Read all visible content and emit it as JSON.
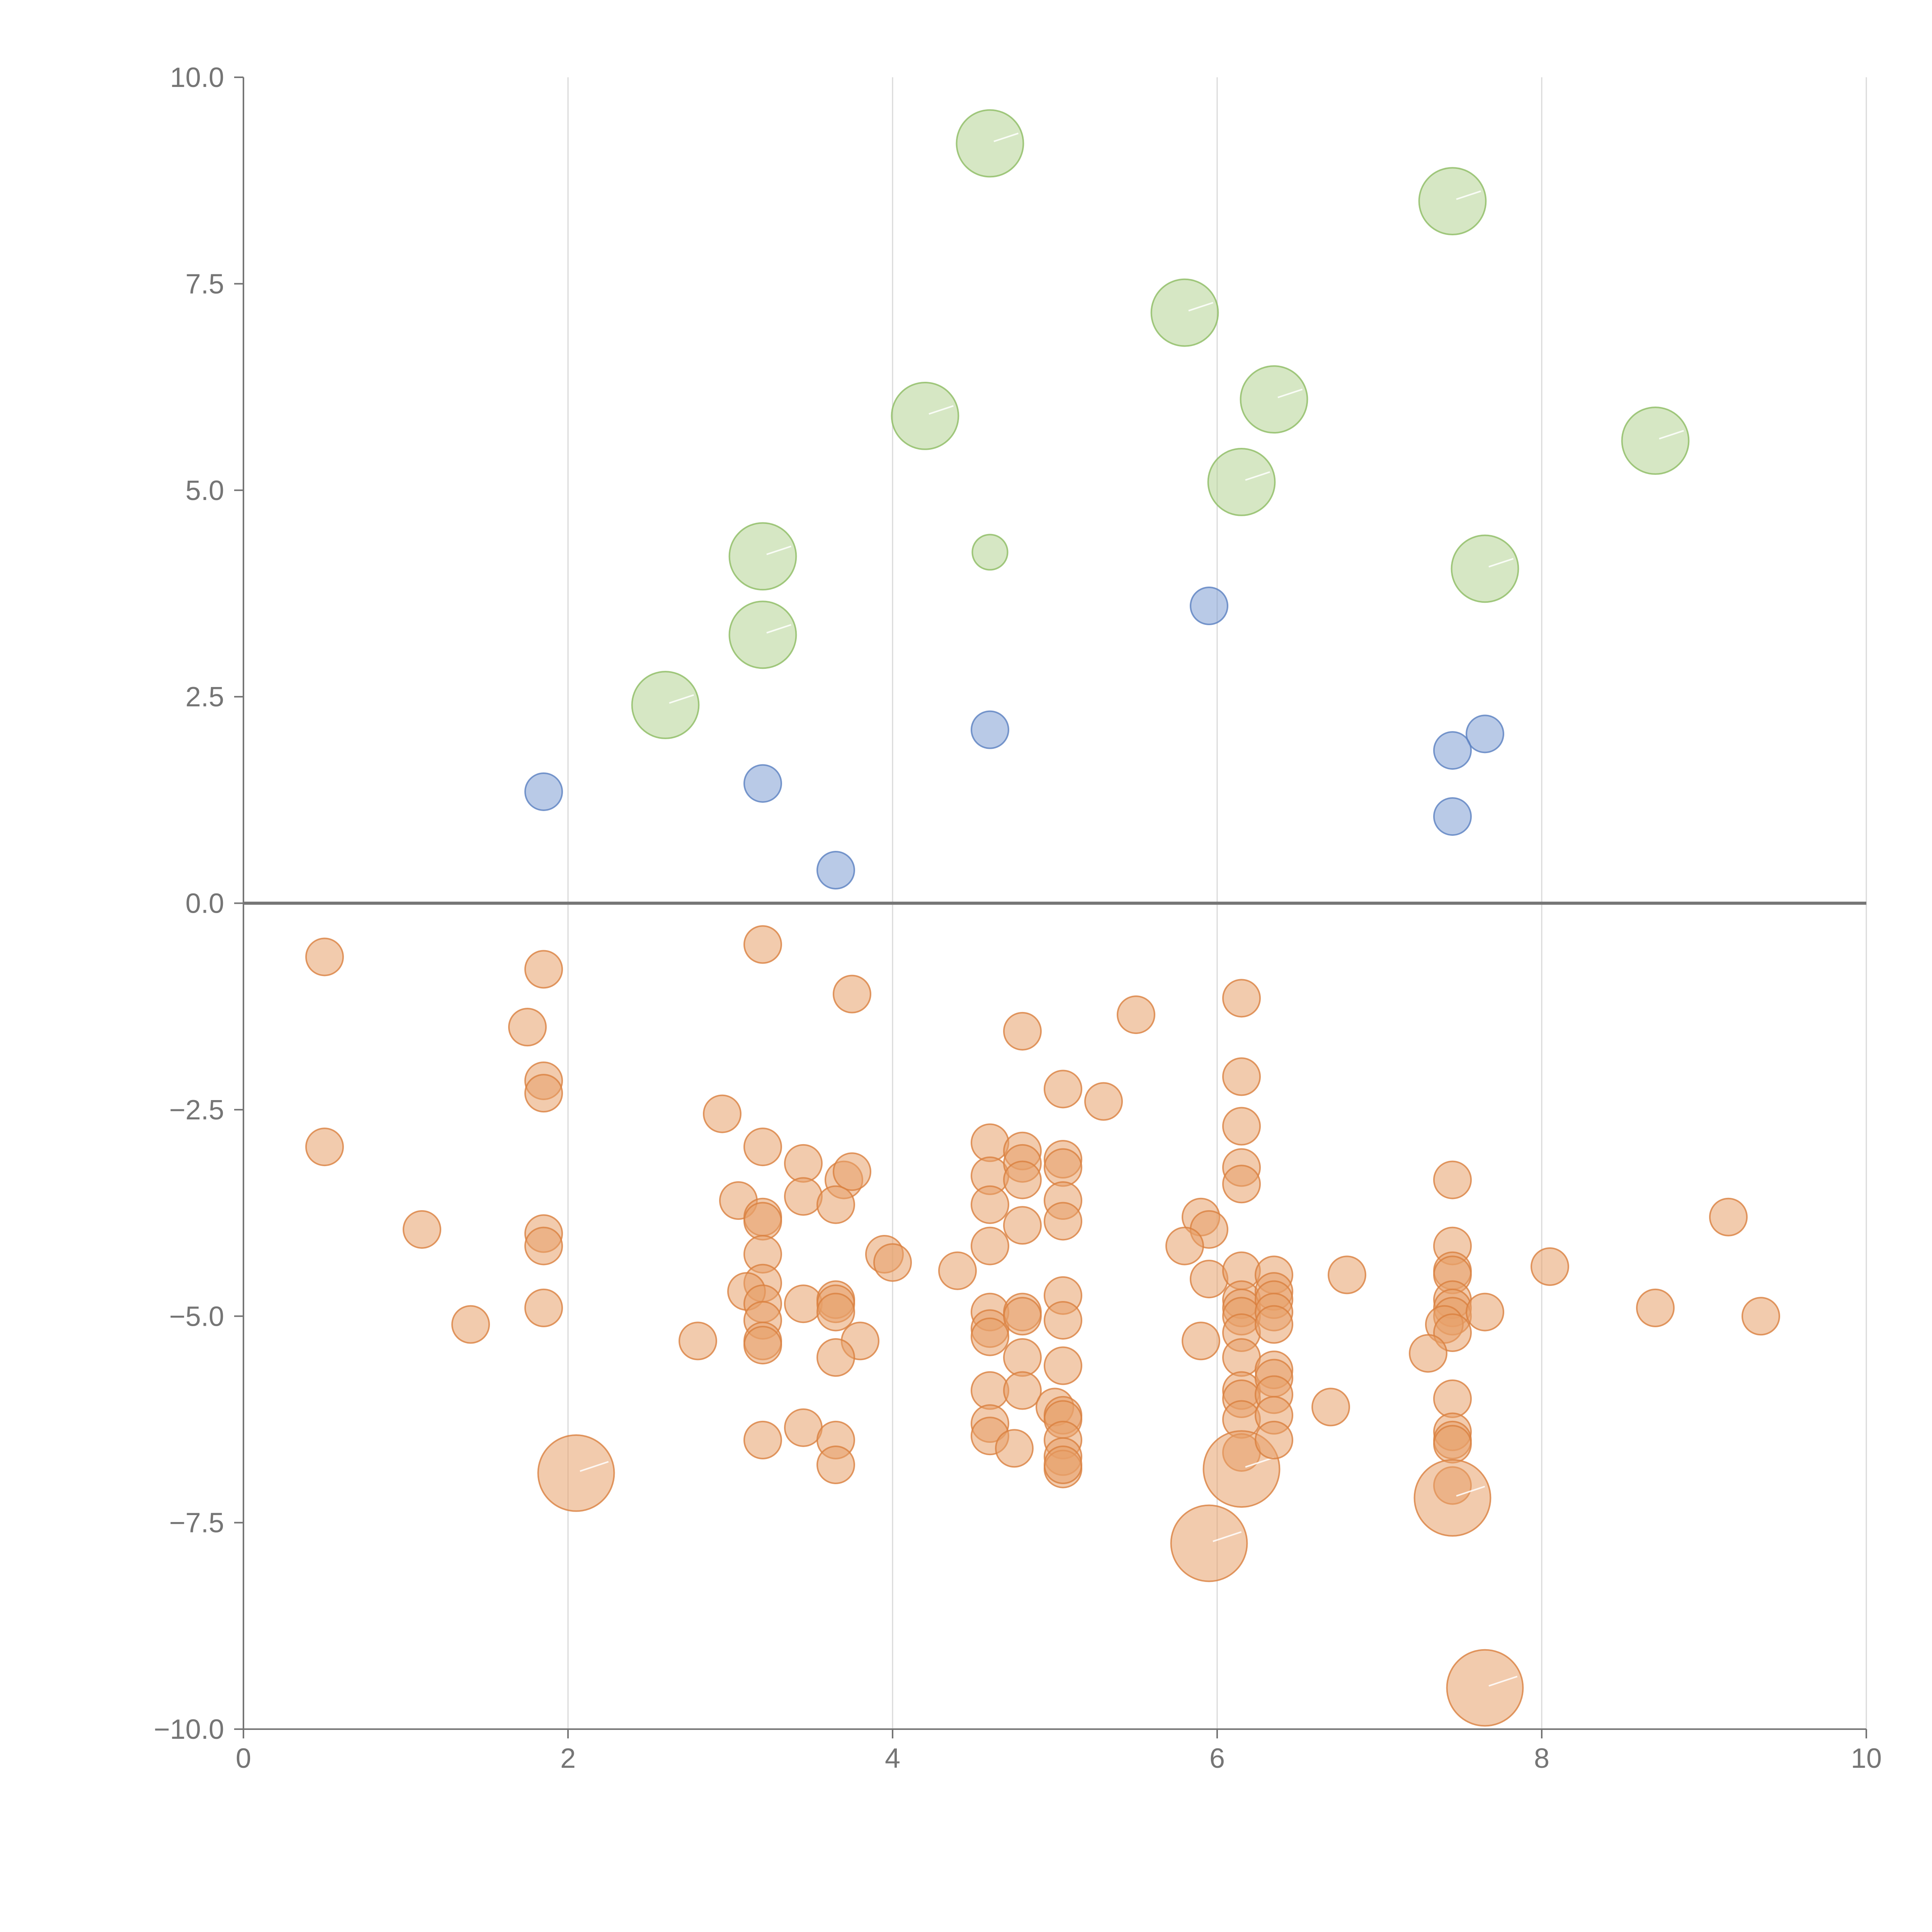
{
  "chart_data": {
    "type": "scatter",
    "title": "",
    "xlabel": "",
    "ylabel": "",
    "xlim": [
      0,
      10
    ],
    "ylim": [
      -10,
      10
    ],
    "grid": "vertical",
    "x_ticks": [
      0,
      2,
      4,
      6,
      8,
      10
    ],
    "x_tick_labels": [
      "0",
      "2",
      "4",
      "6",
      "8",
      "10"
    ],
    "y_ticks": [
      10,
      7.5,
      5,
      2.5,
      0,
      -2.5,
      -5,
      -7.5,
      -10
    ],
    "y_tick_labels": [
      "10.0",
      "7.5",
      "5.0",
      "2.5",
      "0.0",
      "−2.5",
      "−5.0",
      "−7.5",
      "−10.0"
    ],
    "colors": {
      "green_fill": "#b5d394",
      "green_stroke": "#8cbc62",
      "blue_fill": "#7f9fd3",
      "blue_stroke": "#5a7fc0",
      "orange_fill": "#e8a06a",
      "orange_stroke": "#d9803f"
    },
    "series": [
      {
        "name": "green",
        "color_key": "green",
        "points": [
          [
            4.6,
            9.2,
            1.8
          ],
          [
            7.45,
            8.5,
            1.8
          ],
          [
            5.8,
            7.15,
            1.8
          ],
          [
            6.35,
            6.1,
            1.8
          ],
          [
            4.2,
            5.9,
            1.8
          ],
          [
            8.7,
            5.6,
            1.8
          ],
          [
            6.15,
            5.1,
            1.8
          ],
          [
            3.2,
            4.2,
            1.8
          ],
          [
            7.65,
            4.05,
            1.8
          ],
          [
            4.6,
            4.25,
            0.95
          ],
          [
            3.2,
            3.25,
            1.8
          ],
          [
            2.6,
            2.4,
            1.8
          ]
        ]
      },
      {
        "name": "blue",
        "color_key": "blue",
        "points": [
          [
            5.95,
            3.6,
            1
          ],
          [
            4.6,
            2.1,
            1
          ],
          [
            7.65,
            2.05,
            1
          ],
          [
            7.45,
            1.85,
            1
          ],
          [
            1.85,
            1.35,
            1
          ],
          [
            3.2,
            1.45,
            1
          ],
          [
            7.45,
            1.05,
            1
          ],
          [
            3.65,
            0.4,
            1
          ]
        ]
      },
      {
        "name": "orange",
        "color_key": "orange",
        "points": [
          [
            0.5,
            -0.65,
            1
          ],
          [
            0.5,
            -2.95,
            1
          ],
          [
            1.85,
            -0.8,
            1
          ],
          [
            1.75,
            -1.5,
            1
          ],
          [
            1.85,
            -2.15,
            1
          ],
          [
            1.85,
            -2.3,
            1
          ],
          [
            1.85,
            -4.0,
            1
          ],
          [
            1.85,
            -4.15,
            1
          ],
          [
            1.85,
            -4.9,
            1
          ],
          [
            1.1,
            -3.95,
            1
          ],
          [
            1.4,
            -5.1,
            1
          ],
          [
            2.05,
            -6.9,
            2.05
          ],
          [
            2.8,
            -5.3,
            1
          ],
          [
            2.95,
            -2.55,
            1
          ],
          [
            3.2,
            -0.5,
            1
          ],
          [
            3.2,
            -2.95,
            1
          ],
          [
            3.05,
            -3.6,
            1
          ],
          [
            3.2,
            -3.8,
            1
          ],
          [
            3.2,
            -3.85,
            1
          ],
          [
            3.2,
            -4.25,
            1
          ],
          [
            3.2,
            -4.6,
            1
          ],
          [
            3.1,
            -4.7,
            1
          ],
          [
            3.2,
            -4.85,
            1
          ],
          [
            3.2,
            -5.05,
            1
          ],
          [
            3.2,
            -5.3,
            1
          ],
          [
            3.2,
            -5.35,
            1
          ],
          [
            3.2,
            -6.5,
            1
          ],
          [
            3.45,
            -3.15,
            1
          ],
          [
            3.45,
            -3.55,
            1
          ],
          [
            3.45,
            -4.85,
            1
          ],
          [
            3.45,
            -6.35,
            1
          ],
          [
            3.75,
            -1.1,
            1
          ],
          [
            3.7,
            -3.35,
            1
          ],
          [
            3.75,
            -3.25,
            1
          ],
          [
            3.65,
            -3.65,
            1
          ],
          [
            3.65,
            -4.8,
            1
          ],
          [
            3.65,
            -4.85,
            1
          ],
          [
            3.65,
            -4.95,
            1
          ],
          [
            3.8,
            -5.3,
            1
          ],
          [
            3.65,
            -5.5,
            1
          ],
          [
            3.65,
            -6.5,
            1
          ],
          [
            3.65,
            -6.8,
            1
          ],
          [
            3.95,
            -4.25,
            1
          ],
          [
            4.0,
            -4.35,
            1
          ],
          [
            4.4,
            -4.45,
            1
          ],
          [
            4.6,
            -2.9,
            1
          ],
          [
            4.6,
            -3.3,
            1
          ],
          [
            4.6,
            -3.65,
            1
          ],
          [
            4.6,
            -4.15,
            1
          ],
          [
            4.6,
            -4.95,
            1
          ],
          [
            4.6,
            -5.15,
            1
          ],
          [
            4.6,
            -5.25,
            1
          ],
          [
            4.6,
            -5.9,
            1
          ],
          [
            4.6,
            -6.3,
            1
          ],
          [
            4.6,
            -6.45,
            1
          ],
          [
            4.75,
            -6.6,
            1
          ],
          [
            4.8,
            -1.55,
            1
          ],
          [
            4.8,
            -3.0,
            1
          ],
          [
            4.8,
            -3.15,
            1
          ],
          [
            4.8,
            -3.35,
            1
          ],
          [
            4.8,
            -3.9,
            1
          ],
          [
            4.8,
            -4.95,
            1
          ],
          [
            4.8,
            -5.0,
            1
          ],
          [
            4.8,
            -5.5,
            1
          ],
          [
            4.8,
            -5.9,
            1
          ],
          [
            5.05,
            -2.25,
            1
          ],
          [
            5.05,
            -3.1,
            1
          ],
          [
            5.05,
            -3.2,
            1
          ],
          [
            5.05,
            -3.6,
            1
          ],
          [
            5.05,
            -3.85,
            1
          ],
          [
            5.05,
            -4.75,
            1
          ],
          [
            5.05,
            -5.05,
            1
          ],
          [
            5.05,
            -5.6,
            1
          ],
          [
            5.0,
            -6.1,
            1
          ],
          [
            5.05,
            -6.2,
            1
          ],
          [
            5.05,
            -6.25,
            1
          ],
          [
            5.05,
            -6.5,
            1
          ],
          [
            5.05,
            -6.7,
            1
          ],
          [
            5.05,
            -6.85,
            1
          ],
          [
            5.05,
            -6.8,
            1
          ],
          [
            5.3,
            -2.4,
            1
          ],
          [
            5.5,
            -1.35,
            1
          ],
          [
            5.9,
            -3.8,
            1
          ],
          [
            5.95,
            -3.95,
            1
          ],
          [
            5.8,
            -4.15,
            1
          ],
          [
            5.95,
            -4.55,
            1
          ],
          [
            5.9,
            -5.3,
            1
          ],
          [
            5.95,
            -7.75,
            2.05
          ],
          [
            6.15,
            -1.15,
            1
          ],
          [
            6.15,
            -2.1,
            1
          ],
          [
            6.15,
            -2.7,
            1
          ],
          [
            6.15,
            -3.2,
            1
          ],
          [
            6.15,
            -3.4,
            1
          ],
          [
            6.15,
            -4.45,
            1
          ],
          [
            6.15,
            -4.8,
            1
          ],
          [
            6.15,
            -4.9,
            1
          ],
          [
            6.15,
            -5.0,
            1
          ],
          [
            6.15,
            -5.2,
            1
          ],
          [
            6.15,
            -5.5,
            1
          ],
          [
            6.15,
            -5.9,
            1
          ],
          [
            6.15,
            -6.0,
            1
          ],
          [
            6.15,
            -6.25,
            1
          ],
          [
            6.15,
            -6.65,
            1
          ],
          [
            6.15,
            -6.85,
            2.05
          ],
          [
            6.35,
            -4.5,
            1
          ],
          [
            6.35,
            -4.7,
            1
          ],
          [
            6.35,
            -4.8,
            1
          ],
          [
            6.35,
            -4.95,
            1
          ],
          [
            6.35,
            -5.1,
            1
          ],
          [
            6.35,
            -5.65,
            1
          ],
          [
            6.35,
            -5.75,
            1
          ],
          [
            6.35,
            -5.95,
            1
          ],
          [
            6.35,
            -6.2,
            1
          ],
          [
            6.35,
            -6.5,
            1
          ],
          [
            6.7,
            -6.1,
            1
          ],
          [
            6.8,
            -4.5,
            1
          ],
          [
            7.45,
            -3.35,
            1
          ],
          [
            7.45,
            -4.15,
            1
          ],
          [
            7.45,
            -4.45,
            1
          ],
          [
            7.45,
            -4.5,
            1
          ],
          [
            7.45,
            -4.8,
            1
          ],
          [
            7.45,
            -4.9,
            1
          ],
          [
            7.45,
            -5.0,
            1
          ],
          [
            7.4,
            -5.1,
            1
          ],
          [
            7.45,
            -5.2,
            1
          ],
          [
            7.3,
            -5.45,
            1
          ],
          [
            7.45,
            -6.0,
            1
          ],
          [
            7.45,
            -6.4,
            1
          ],
          [
            7.45,
            -6.5,
            1
          ],
          [
            7.45,
            -6.55,
            1
          ],
          [
            7.45,
            -7.05,
            1
          ],
          [
            7.45,
            -7.2,
            2.05
          ],
          [
            7.65,
            -4.95,
            1
          ],
          [
            7.65,
            -9.5,
            2.05
          ],
          [
            8.05,
            -4.4,
            1
          ],
          [
            8.7,
            -4.9,
            1
          ],
          [
            9.15,
            -3.8,
            1
          ],
          [
            9.35,
            -5.0,
            1
          ]
        ]
      }
    ]
  }
}
